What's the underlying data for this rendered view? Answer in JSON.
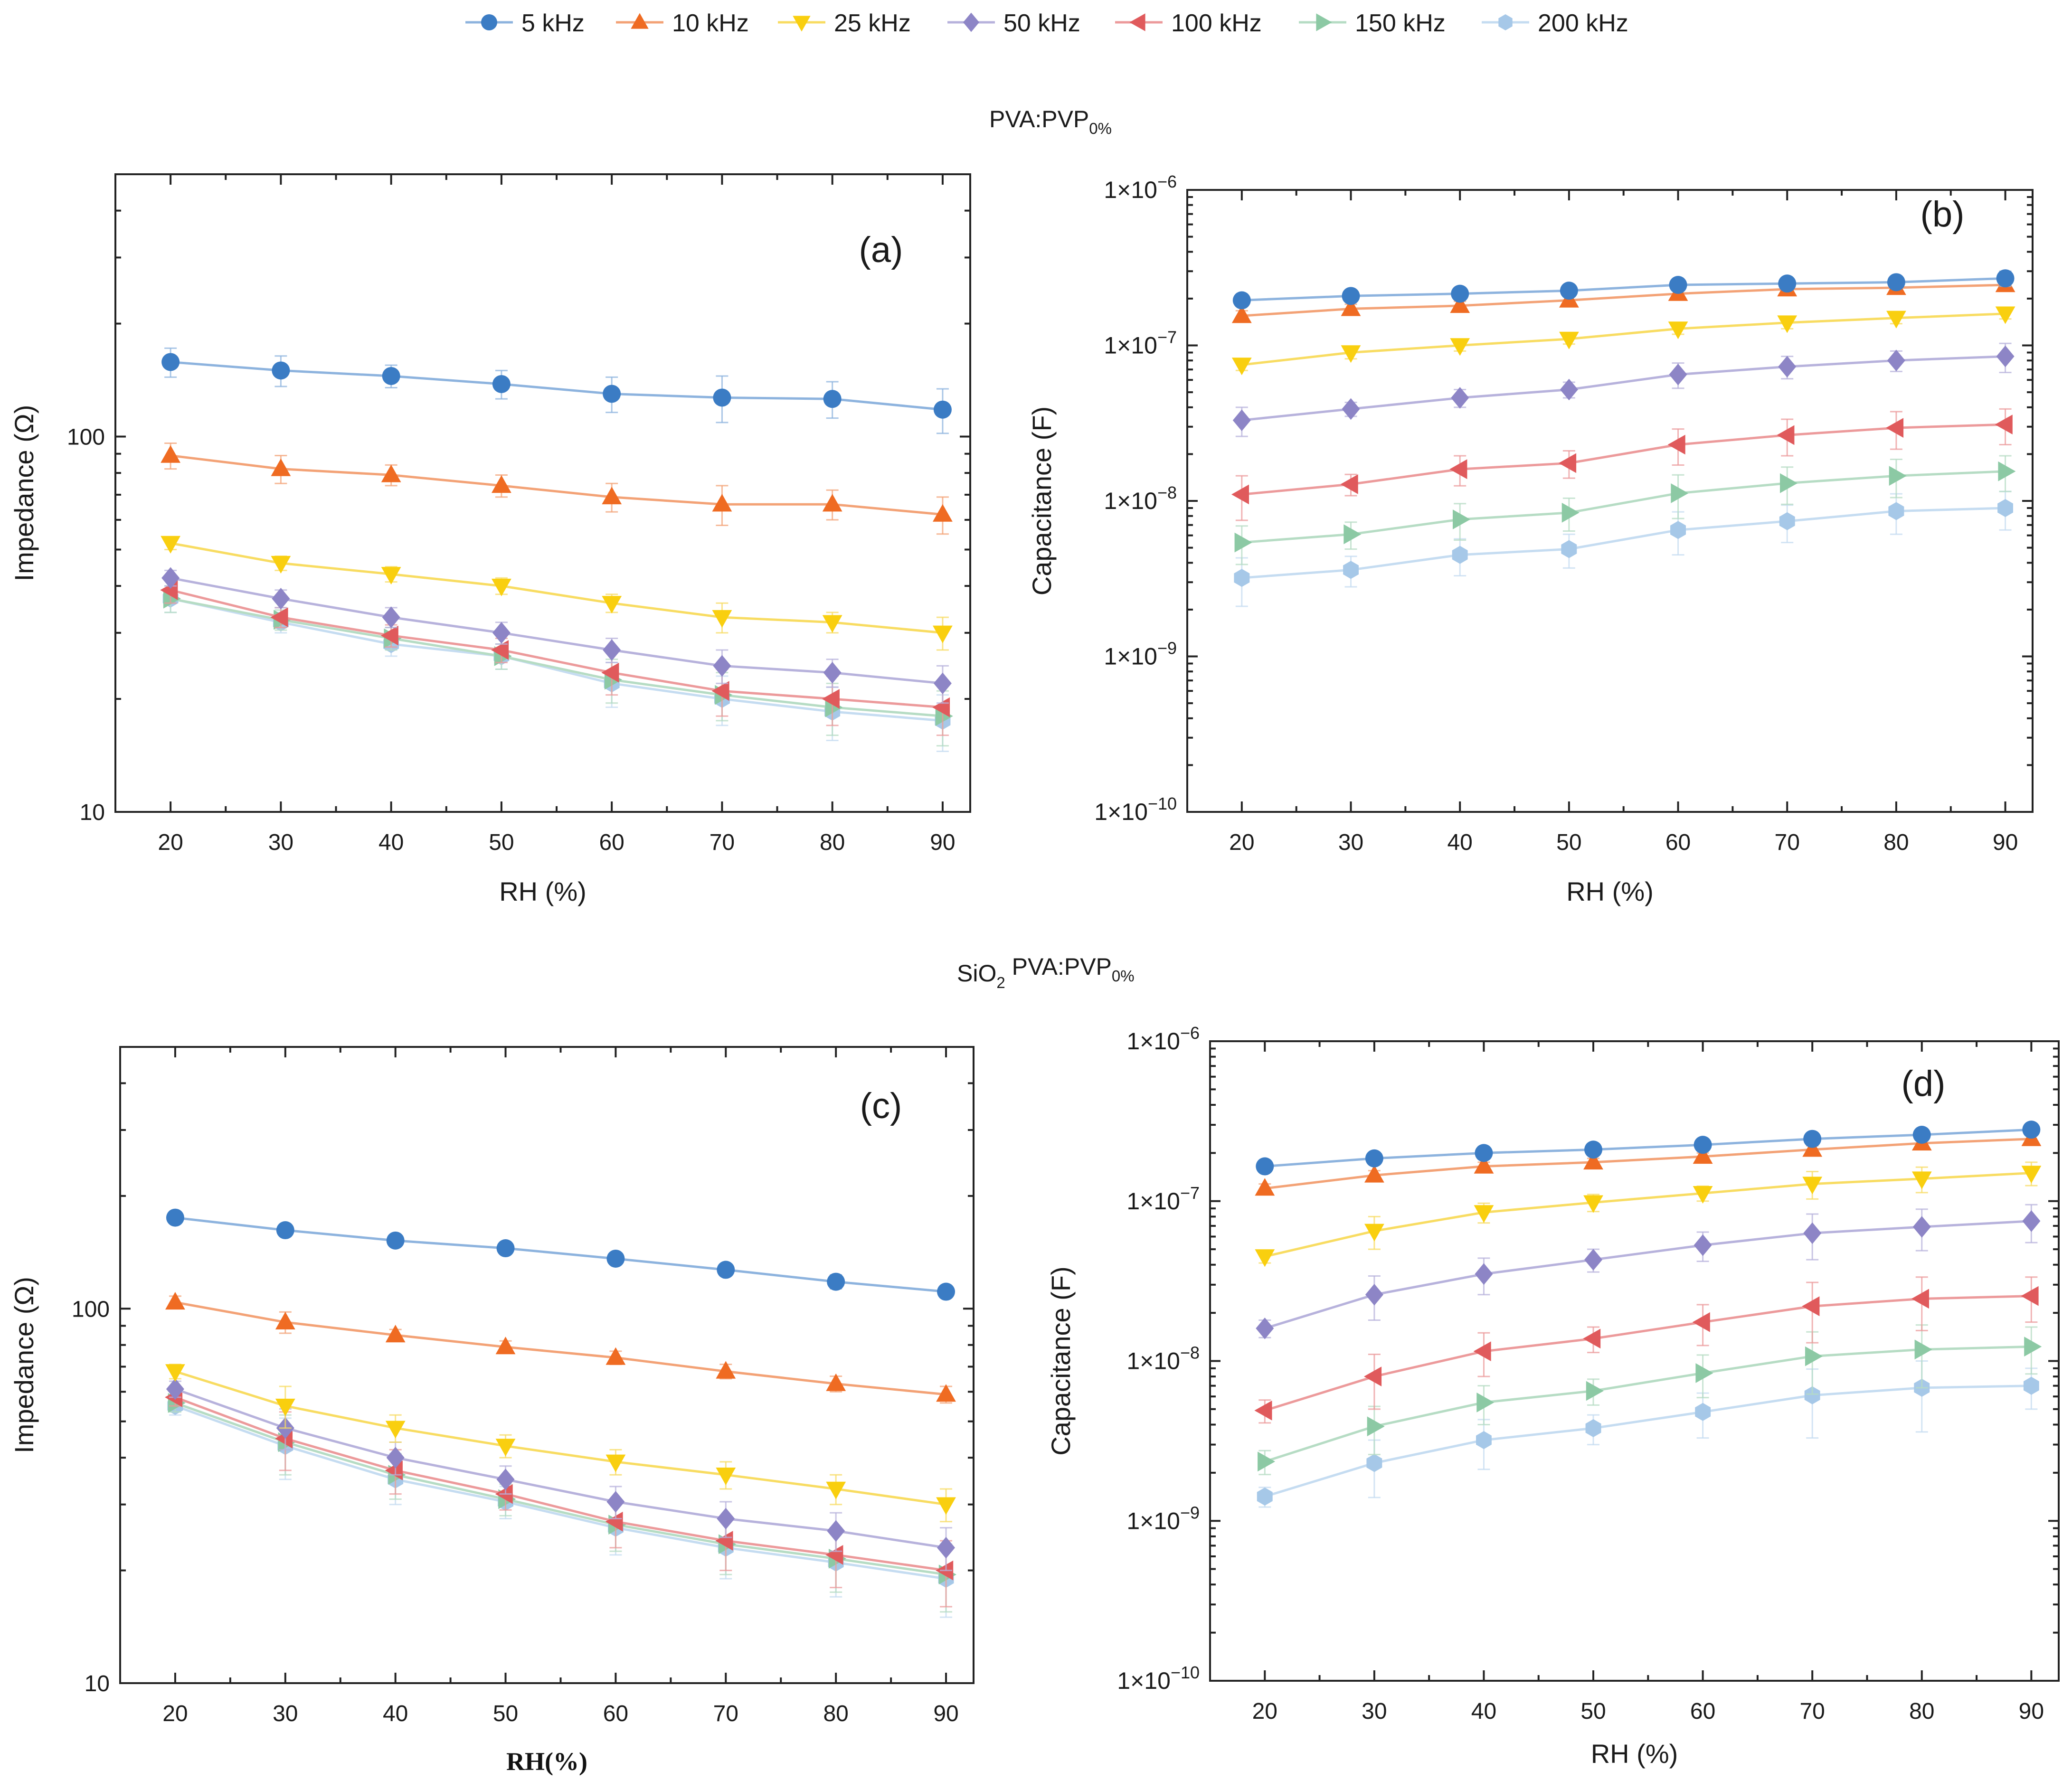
{
  "legend": [
    {
      "name": "5 kHz",
      "color": "#3b7cc4",
      "line_color": "#8db3de",
      "marker": "circle"
    },
    {
      "name": "10 kHz",
      "color": "#ef6b22",
      "line_color": "#f3a276",
      "marker": "triangle-up"
    },
    {
      "name": "25 kHz",
      "color": "#f9cf0f",
      "line_color": "#f8dc62",
      "marker": "triangle-down"
    },
    {
      "name": "50 kHz",
      "color": "#8d85c6",
      "line_color": "#b7b2dc",
      "marker": "diamond"
    },
    {
      "name": "100 kHz",
      "color": "#e05a5c",
      "line_color": "#ec9a9b",
      "marker": "triangle-left"
    },
    {
      "name": "150 kHz",
      "color": "#8cc9a4",
      "line_color": "#b6dcc4",
      "marker": "triangle-right"
    },
    {
      "name": "200 kHz",
      "color": "#a6c8e8",
      "line_color": "#c5dcf1",
      "marker": "hexagon"
    }
  ],
  "section_titles": {
    "top": {
      "main": "PVA:PVP",
      "sub": "0%"
    },
    "bottom": {
      "prefix": "SiO",
      "prefix_sub": "2",
      "main": " PVA:PVP",
      "sub": "0%"
    }
  },
  "chart_data": [
    {
      "type": "line",
      "panel_label": "(a)",
      "yscale": "log",
      "xlabel": "RH (%)",
      "ylabel": "Impedance (Ω)",
      "xlim": [
        15,
        92.5
      ],
      "ylim": [
        10,
        500
      ],
      "x_ticks": [
        "20",
        "30",
        "40",
        "50",
        "60",
        "70",
        "80",
        "90"
      ],
      "y_tick_labels": [
        "10",
        "100"
      ],
      "x": [
        20,
        30,
        40,
        50,
        60,
        70,
        80,
        90
      ],
      "series": [
        {
          "name": "5 kHz",
          "values": [
            158,
            150,
            145,
            138,
            130,
            127,
            126,
            118
          ],
          "err": [
            14,
            14,
            10,
            12,
            14,
            18,
            14,
            16
          ]
        },
        {
          "name": "10 kHz",
          "values": [
            89,
            82,
            79,
            74,
            69,
            66,
            66,
            62
          ],
          "err": [
            7,
            7,
            5,
            5,
            6,
            8,
            6,
            7
          ]
        },
        {
          "name": "25 kHz",
          "values": [
            52,
            46,
            43,
            40,
            36,
            33,
            32,
            30
          ],
          "err": [
            2,
            2,
            2,
            2,
            2,
            3,
            2,
            3
          ]
        },
        {
          "name": "50 kHz",
          "values": [
            42,
            37,
            33,
            30,
            27,
            24.5,
            23.5,
            22
          ],
          "err": [
            2,
            2,
            2,
            2,
            2,
            2.5,
            2,
            2.5
          ]
        },
        {
          "name": "100 kHz",
          "values": [
            39,
            33,
            29.5,
            27,
            23.5,
            21,
            20,
            19
          ],
          "err": [
            3,
            2,
            2,
            2,
            3,
            3,
            3,
            3
          ]
        },
        {
          "name": "150 kHz",
          "values": [
            37,
            32.5,
            29,
            26,
            22.5,
            20.5,
            19,
            18
          ],
          "err": [
            3,
            2,
            2,
            2,
            3,
            3,
            3,
            3
          ]
        },
        {
          "name": "200 kHz",
          "values": [
            37,
            32,
            28,
            26,
            22,
            20,
            18.5,
            17.5
          ],
          "err": [
            3,
            2,
            2,
            2,
            3,
            3,
            3,
            3
          ]
        }
      ]
    },
    {
      "type": "line",
      "panel_label": "(b)",
      "yscale": "log",
      "xlabel": "RH (%)",
      "ylabel": "Capacitance (F)",
      "xlim": [
        15,
        92.5
      ],
      "ylim": [
        1e-10,
        1e-06
      ],
      "x_ticks": [
        "20",
        "30",
        "40",
        "50",
        "60",
        "70",
        "80",
        "90"
      ],
      "y_tick_labels": [
        {
          "base": "1×10",
          "exp": "−10"
        },
        {
          "base": "1×10",
          "exp": "−9"
        },
        {
          "base": "1×10",
          "exp": "−8"
        },
        {
          "base": "1×10",
          "exp": "−7"
        },
        {
          "base": "1×10",
          "exp": "−6"
        }
      ],
      "x": [
        20,
        30,
        40,
        50,
        60,
        70,
        80,
        90
      ],
      "series": [
        {
          "name": "5 kHz",
          "values": [
            1.95e-07,
            2.08e-07,
            2.15e-07,
            2.25e-07,
            2.45e-07,
            2.5e-07,
            2.55e-07,
            2.7e-07
          ],
          "err": [
            1.5e-08,
            1.5e-08,
            1.5e-08,
            1.5e-08,
            2e-08,
            2e-08,
            2e-08,
            3e-08
          ]
        },
        {
          "name": "10 kHz",
          "values": [
            1.55e-07,
            1.72e-07,
            1.8e-07,
            1.95e-07,
            2.15e-07,
            2.3e-07,
            2.35e-07,
            2.45e-07
          ],
          "err": [
            1.2e-08,
            1.2e-08,
            1.2e-08,
            1.2e-08,
            1.5e-08,
            2e-08,
            2e-08,
            2e-08
          ]
        },
        {
          "name": "25 kHz",
          "values": [
            7.5e-08,
            9e-08,
            1e-07,
            1.1e-07,
            1.28e-07,
            1.4e-07,
            1.5e-07,
            1.6e-07
          ],
          "err": [
            6e-09,
            8e-09,
            8e-09,
            8e-09,
            1e-08,
            1.2e-08,
            1.2e-08,
            1.2e-08
          ]
        },
        {
          "name": "50 kHz",
          "values": [
            3.3e-08,
            3.9e-08,
            4.6e-08,
            5.2e-08,
            6.5e-08,
            7.3e-08,
            8e-08,
            8.5e-08
          ],
          "err": [
            7e-09,
            4e-09,
            6e-09,
            6e-09,
            1.2e-08,
            1.2e-08,
            1.2e-08,
            1.8e-08
          ]
        },
        {
          "name": "100 kHz",
          "values": [
            1.1e-08,
            1.28e-08,
            1.6e-08,
            1.75e-08,
            2.3e-08,
            2.65e-08,
            2.95e-08,
            3.1e-08
          ],
          "err": [
            3.5e-09,
            2e-09,
            3.5e-09,
            3.5e-09,
            6e-09,
            7e-09,
            8e-09,
            8e-09
          ]
        },
        {
          "name": "150 kHz",
          "values": [
            5.4e-09,
            6.1e-09,
            7.6e-09,
            8.4e-09,
            1.12e-08,
            1.3e-08,
            1.45e-08,
            1.55e-08
          ],
          "err": [
            1.5e-09,
            1.2e-09,
            2e-09,
            2e-09,
            3.5e-09,
            3.5e-09,
            4e-09,
            4e-09
          ]
        },
        {
          "name": "200 kHz",
          "values": [
            3.2e-09,
            3.6e-09,
            4.5e-09,
            4.9e-09,
            6.5e-09,
            7.4e-09,
            8.6e-09,
            9e-09
          ],
          "err": [
            1.1e-09,
            8e-10,
            1.2e-09,
            1.2e-09,
            2e-09,
            2e-09,
            2.5e-09,
            2.5e-09
          ]
        }
      ]
    },
    {
      "type": "line",
      "panel_label": "(c)",
      "yscale": "log",
      "xlabel": "RH(%)",
      "ylabel": "Impedance (Ω)",
      "xlim": [
        15,
        92.5
      ],
      "ylim": [
        10,
        500
      ],
      "x_ticks": [
        "20",
        "30",
        "40",
        "50",
        "60",
        "70",
        "80",
        "90"
      ],
      "y_tick_labels": [
        "10",
        "100"
      ],
      "x": [
        20,
        30,
        40,
        50,
        60,
        70,
        80,
        90
      ],
      "series": [
        {
          "name": "5 kHz",
          "values": [
            175,
            162,
            152,
            145,
            136,
            127,
            118,
            111
          ],
          "err": [
            4,
            6,
            4,
            4,
            4,
            4,
            5,
            4
          ]
        },
        {
          "name": "10 kHz",
          "values": [
            104,
            92,
            85,
            79,
            74,
            68,
            63,
            59
          ],
          "err": [
            4,
            6,
            3,
            3,
            3,
            3,
            3,
            3
          ]
        },
        {
          "name": "25 kHz",
          "values": [
            68,
            55,
            48,
            43,
            39,
            36,
            33,
            30
          ],
          "err": [
            3,
            7,
            4,
            3,
            3,
            3,
            3,
            3
          ]
        },
        {
          "name": "50 kHz",
          "values": [
            61,
            48,
            40,
            35,
            30.5,
            27.5,
            25.5,
            23
          ],
          "err": [
            3,
            6,
            4,
            3,
            3,
            3,
            3,
            3
          ]
        },
        {
          "name": "100 kHz",
          "values": [
            58,
            45,
            37,
            32,
            27,
            24,
            22,
            20
          ],
          "err": [
            3,
            8,
            5,
            3,
            4,
            4,
            4,
            4
          ]
        },
        {
          "name": "150 kHz",
          "values": [
            56,
            44,
            36,
            31,
            26.5,
            23.5,
            21.5,
            19.5
          ],
          "err": [
            3,
            8,
            5,
            3,
            4,
            4,
            4,
            4
          ]
        },
        {
          "name": "200 kHz",
          "values": [
            55,
            43,
            35,
            30.5,
            26,
            23,
            21,
            19
          ],
          "err": [
            3,
            8,
            5,
            3,
            4,
            4,
            4,
            4
          ]
        }
      ]
    },
    {
      "type": "line",
      "panel_label": "(d)",
      "yscale": "log",
      "xlabel": "RH (%)",
      "ylabel": "Capacitance (F)",
      "xlim": [
        15,
        92.5
      ],
      "ylim": [
        1e-10,
        1e-06
      ],
      "x_ticks": [
        "20",
        "30",
        "40",
        "50",
        "60",
        "70",
        "80",
        "90"
      ],
      "y_tick_labels": [
        {
          "base": "1×10",
          "exp": "−10"
        },
        {
          "base": "1×10",
          "exp": "−9"
        },
        {
          "base": "1×10",
          "exp": "−8"
        },
        {
          "base": "1×10",
          "exp": "−7"
        },
        {
          "base": "1×10",
          "exp": "−6"
        }
      ],
      "x": [
        20,
        30,
        40,
        50,
        60,
        70,
        80,
        90
      ],
      "series": [
        {
          "name": "5 kHz",
          "values": [
            1.65e-07,
            1.85e-07,
            2e-07,
            2.1e-07,
            2.25e-07,
            2.45e-07,
            2.6e-07,
            2.8e-07
          ],
          "err": [
            8e-09,
            8e-09,
            8e-09,
            8e-09,
            8e-09,
            1e-08,
            1e-08,
            1e-08
          ]
        },
        {
          "name": "10 kHz",
          "values": [
            1.2e-07,
            1.45e-07,
            1.65e-07,
            1.75e-07,
            1.9e-07,
            2.1e-07,
            2.3e-07,
            2.45e-07
          ],
          "err": [
            8e-09,
            1e-08,
            1e-08,
            1e-08,
            1e-08,
            1.2e-08,
            1.2e-08,
            1.2e-08
          ]
        },
        {
          "name": "25 kHz",
          "values": [
            4.5e-08,
            6.5e-08,
            8.5e-08,
            9.8e-08,
            1.12e-07,
            1.28e-07,
            1.38e-07,
            1.5e-07
          ],
          "err": [
            4e-09,
            1.5e-08,
            1.2e-08,
            1.2e-08,
            1.2e-08,
            2.5e-08,
            2.5e-08,
            2.5e-08
          ]
        },
        {
          "name": "50 kHz",
          "values": [
            1.6e-08,
            2.6e-08,
            3.5e-08,
            4.3e-08,
            5.3e-08,
            6.3e-08,
            6.9e-08,
            7.5e-08
          ],
          "err": [
            2e-09,
            8e-09,
            9e-09,
            7e-09,
            1.1e-08,
            2e-08,
            2e-08,
            2e-08
          ]
        },
        {
          "name": "100 kHz",
          "values": [
            4.9e-09,
            8e-09,
            1.15e-08,
            1.38e-08,
            1.75e-08,
            2.2e-08,
            2.45e-08,
            2.55e-08
          ],
          "err": [
            8e-10,
            3e-09,
            3.5e-09,
            2.5e-09,
            5e-09,
            9e-09,
            9e-09,
            8e-09
          ]
        },
        {
          "name": "150 kHz",
          "values": [
            2.35e-09,
            3.9e-09,
            5.5e-09,
            6.5e-09,
            8.4e-09,
            1.07e-08,
            1.18e-08,
            1.23e-08
          ],
          "err": [
            4e-10,
            1.3e-09,
            1.5e-09,
            1.2e-09,
            2.5e-09,
            4.5e-09,
            5e-09,
            4e-09
          ]
        },
        {
          "name": "200 kHz",
          "values": [
            1.42e-09,
            2.3e-09,
            3.2e-09,
            3.8e-09,
            4.8e-09,
            6.1e-09,
            6.8e-09,
            7e-09
          ],
          "err": [
            2e-10,
            9e-10,
            1.1e-09,
            8e-10,
            1.5e-09,
            2.8e-09,
            3.2e-09,
            2e-09
          ]
        }
      ]
    }
  ]
}
